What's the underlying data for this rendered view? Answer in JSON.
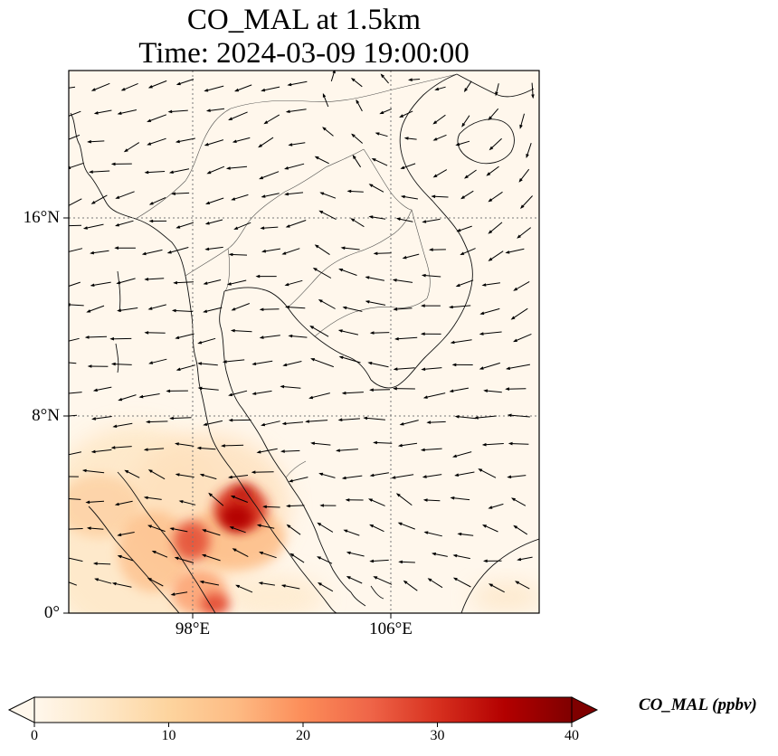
{
  "title": {
    "line1": "CO_MAL at 1.5km",
    "line2": "Time: 2024-03-09 19:00:00"
  },
  "axes": {
    "lat_labels": [
      "16°N",
      "8°N",
      "0°"
    ],
    "lon_labels": [
      "98°E",
      "106°E"
    ],
    "gridlines": "dotted"
  },
  "colorbar": {
    "label": "CO_MAL (ppbv)",
    "ticks": [
      "0",
      "10",
      "20",
      "30",
      "40"
    ],
    "range": [
      0,
      40
    ],
    "colormap": "OrRd",
    "extend": "both",
    "colors": [
      "#fff7ec",
      "#fee8c8",
      "#fdd49e",
      "#fdbb84",
      "#fc8d59",
      "#ef6548",
      "#d7301f",
      "#b30000",
      "#7f0000"
    ]
  },
  "map": {
    "projection": "lat-lon",
    "lon_range": [
      93,
      112
    ],
    "lat_range": [
      0,
      22
    ],
    "overlay": "wind-vectors",
    "coastline_color": "#000000",
    "plume_color": "#b30000"
  }
}
